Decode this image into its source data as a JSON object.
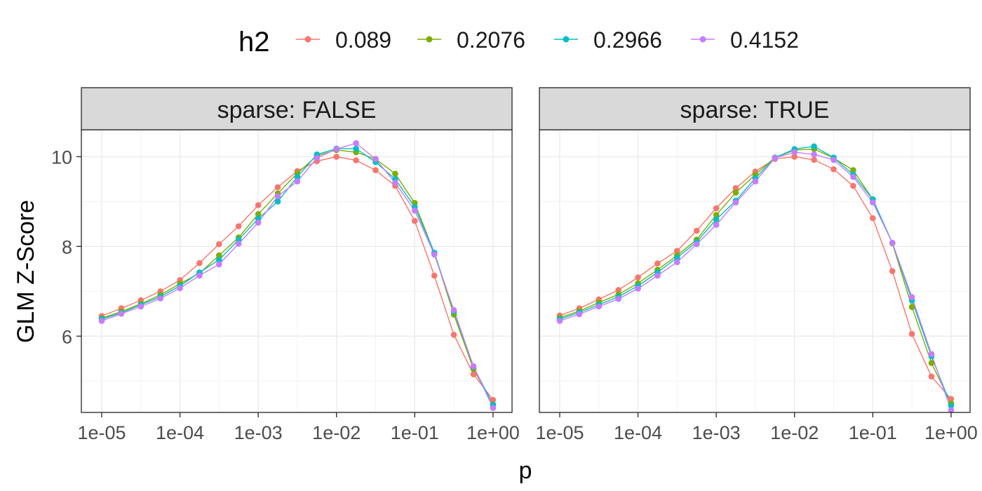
{
  "chart_data": {
    "type": "line",
    "legend": {
      "title": "h2",
      "position": "top",
      "entries": [
        "0.089",
        "0.2076",
        "0.2966",
        "0.4152"
      ]
    },
    "colors": {
      "0.089": "#F8766D",
      "0.2076": "#7CAE00",
      "0.2966": "#00BFC4",
      "0.4152": "#C77CFF"
    },
    "xlabel": "p",
    "ylabel": "GLM Z-Score",
    "x_scale": "log10",
    "xlim": [
      5.5e-06,
      1.75
    ],
    "ylim": [
      4.3,
      10.6
    ],
    "x_ticks": [
      "1e-05",
      "1e-04",
      "1e-03",
      "1e-02",
      "1e-01",
      "1e+00"
    ],
    "y_ticks": [
      "6",
      "8",
      "10"
    ],
    "grid": true,
    "x": [
      1e-05,
      1.778e-05,
      3.162e-05,
      5.623e-05,
      0.0001,
      0.0001778,
      0.0003162,
      0.0005623,
      0.001,
      0.001778,
      0.003162,
      0.005623,
      0.01,
      0.01778,
      0.03162,
      0.05623,
      0.1,
      0.1778,
      0.3162,
      0.5623,
      1.0
    ],
    "panels": [
      {
        "strip": "sparse: FALSE",
        "series": [
          {
            "name": "0.089",
            "values": [
              6.45,
              6.62,
              6.8,
              7.0,
              7.25,
              7.63,
              8.05,
              8.45,
              8.92,
              9.32,
              9.68,
              9.9,
              10.0,
              9.92,
              9.7,
              9.35,
              8.57,
              7.35,
              6.03,
              5.15,
              4.58
            ]
          },
          {
            "name": "0.2076",
            "values": [
              6.4,
              6.55,
              6.72,
              6.92,
              7.17,
              7.4,
              7.8,
              8.2,
              8.72,
              9.18,
              9.63,
              10.02,
              10.15,
              10.1,
              9.95,
              9.62,
              8.97,
              7.85,
              6.48,
              5.27,
              4.48
            ]
          },
          {
            "name": "0.2966",
            "values": [
              6.38,
              6.52,
              6.7,
              6.88,
              7.12,
              7.42,
              7.7,
              8.15,
              8.62,
              9.0,
              9.55,
              10.05,
              10.18,
              10.18,
              9.88,
              9.5,
              8.88,
              7.86,
              6.55,
              5.32,
              4.47
            ]
          },
          {
            "name": "0.4152",
            "values": [
              6.34,
              6.5,
              6.66,
              6.84,
              7.07,
              7.35,
              7.6,
              8.06,
              8.53,
              9.12,
              9.45,
              9.97,
              10.17,
              10.3,
              9.95,
              9.42,
              8.8,
              7.82,
              6.58,
              5.33,
              4.4
            ]
          }
        ]
      },
      {
        "strip": "sparse: TRUE",
        "series": [
          {
            "name": "0.089",
            "values": [
              6.46,
              6.62,
              6.82,
              7.03,
              7.31,
              7.62,
              7.9,
              8.35,
              8.85,
              9.3,
              9.67,
              9.95,
              10.0,
              9.93,
              9.72,
              9.35,
              8.63,
              7.45,
              6.05,
              5.1,
              4.6
            ]
          },
          {
            "name": "0.2076",
            "values": [
              6.41,
              6.56,
              6.75,
              6.93,
              7.18,
              7.48,
              7.8,
              8.15,
              8.7,
              9.2,
              9.6,
              9.98,
              10.15,
              10.17,
              9.97,
              9.7,
              9.05,
              8.07,
              6.65,
              5.4,
              4.5
            ]
          },
          {
            "name": "0.2966",
            "values": [
              6.38,
              6.53,
              6.7,
              6.88,
              7.12,
              7.42,
              7.75,
              8.1,
              8.6,
              9.02,
              9.52,
              9.98,
              10.17,
              10.23,
              9.98,
              9.6,
              9.05,
              8.08,
              6.8,
              5.55,
              4.45
            ]
          },
          {
            "name": "0.4152",
            "values": [
              6.34,
              6.49,
              6.66,
              6.83,
              7.06,
              7.35,
              7.65,
              8.05,
              8.48,
              8.98,
              9.45,
              9.97,
              10.1,
              10.05,
              9.93,
              9.55,
              8.98,
              8.08,
              6.87,
              5.6,
              4.35
            ]
          }
        ]
      }
    ]
  }
}
